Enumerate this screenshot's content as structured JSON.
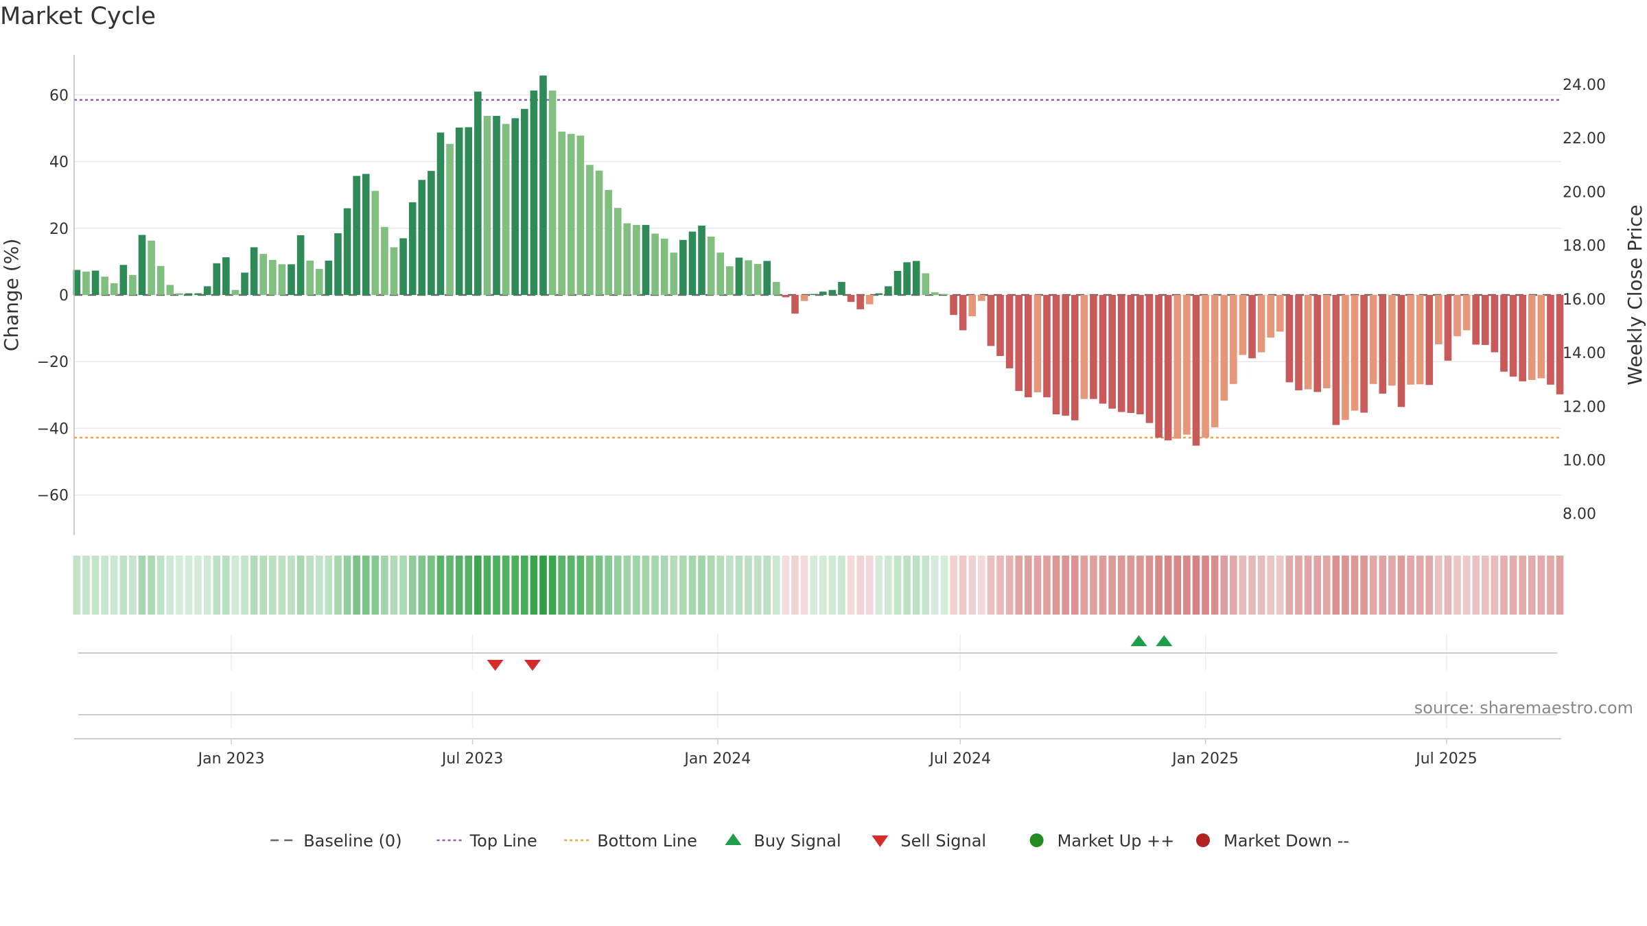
{
  "chart_data": {
    "type": "bar",
    "title": "Market Cycle",
    "ylabel": "Change (%)",
    "y2label": "Weekly Close Price",
    "ylim": [
      -72,
      72
    ],
    "y2lim": [
      7.2,
      25.1
    ],
    "yticks": [
      60,
      40,
      20,
      0,
      -20,
      -40,
      -60
    ],
    "ytick_labels": [
      "60",
      "40",
      "20",
      "0",
      "−20",
      "−40",
      "−60"
    ],
    "y2ticks": [
      24,
      22,
      20,
      18,
      16,
      14,
      12,
      10,
      8
    ],
    "y2tick_labels": [
      "24.00",
      "22.00",
      "20.00",
      "18.00",
      "16.00",
      "14.00",
      "12.00",
      "10.00",
      "8.00"
    ],
    "grid": true,
    "x_start": "2022-09-05",
    "x_end": "2025-09-25",
    "xticks": [
      "2023-01-01",
      "2023-07-01",
      "2024-01-01",
      "2024-07-01",
      "2025-01-01",
      "2025-07-01"
    ],
    "xtick_labels": [
      "Jan 2023",
      "Jul 2023",
      "Jan 2024",
      "Jul 2024",
      "Jan 2025",
      "Jul 2025"
    ],
    "first_bar_date": "2022-09-07",
    "bar_interval_days": 7,
    "series": [
      {
        "name": "Change (%)",
        "values": [
          7.5,
          7,
          7.3,
          5.5,
          3.5,
          9,
          6,
          18,
          16.3,
          8.7,
          3,
          0.5,
          0.5,
          0.5,
          2.6,
          9.5,
          11.3,
          1.5,
          6.7,
          14.3,
          12.3,
          10.5,
          9.2,
          9.2,
          17.9,
          10.3,
          7.8,
          10.3,
          18.5,
          26,
          35.7,
          36.3,
          31.2,
          20.4,
          14.3,
          17,
          27.8,
          34.5,
          37.2,
          48.7,
          45.3,
          50.2,
          50.3,
          61,
          53.7,
          53.7,
          51.3,
          53,
          55.8,
          61.3,
          65.8,
          61.3,
          49,
          48.3,
          47.8,
          39,
          37.3,
          31.5,
          26.1,
          21.5,
          21,
          21,
          18.4,
          16.9,
          12.7,
          16.5,
          19,
          20.8,
          17.5,
          12.7,
          8.6,
          11.2,
          10.4,
          9.3,
          10.2,
          3.9,
          -0.7,
          -5.6,
          -1.8,
          0.3,
          1,
          1.5,
          3.9,
          -2.1,
          -4.3,
          -2.8,
          0.5,
          2.6,
          7.2,
          9.8,
          10.2,
          6.5,
          0.8,
          0.3,
          -6,
          -10.6,
          -6.4,
          -1.8,
          -15.3,
          -18.3,
          -22,
          -28.8,
          -30.7,
          -29.2,
          -30.7,
          -35.8,
          -36.2,
          -37.6,
          -31.2,
          -31.2,
          -32.6,
          -34.1,
          -35.1,
          -35.4,
          -35.8,
          -38.4,
          -42.8,
          -43.6,
          -43.1,
          -41.9,
          -45.2,
          -42.8,
          -39.7,
          -31.7,
          -26.7,
          -18,
          -19,
          -17.2,
          -12.8,
          -11,
          -26.2,
          -28.6,
          -28.3,
          -29.1,
          -28,
          -39,
          -37.5,
          -34.7,
          -35.3,
          -26.7,
          -29.6,
          -27.2,
          -33.6,
          -26.9,
          -26.8,
          -27,
          -14.8,
          -19.7,
          -12.4,
          -10.6,
          -14.9,
          -15,
          -17.2,
          -23,
          -24.5,
          -25.9,
          -25.5,
          -25,
          -26.9,
          -29.8
        ]
      }
    ],
    "reference_lines": [
      {
        "name": "Baseline (0)",
        "value": 0,
        "color": "#666666",
        "style": "dashed"
      },
      {
        "name": "Top Line",
        "value": 58.5,
        "color": "#9b59b6",
        "style": "dotted"
      },
      {
        "name": "Bottom Line",
        "value": -42.8,
        "color": "#f0a04b",
        "style": "dotted"
      }
    ],
    "signals": {
      "buy": [
        {
          "date": "2024-11-12"
        },
        {
          "date": "2024-12-01"
        }
      ],
      "sell": [
        {
          "date": "2023-07-18"
        },
        {
          "date": "2023-08-15"
        }
      ]
    },
    "colors": {
      "up_dark": "#2e8b57",
      "up_light": "#80bf80",
      "down_dark": "#c85a5a",
      "down_light": "#e6977a",
      "buy": "#1e9e4a",
      "sell": "#d62b2b",
      "market_up": "#228b22",
      "market_down": "#b22222",
      "top_line": "#9b59b6",
      "bottom_line": "#f0a04b",
      "baseline": "#666666"
    },
    "legend": {
      "placement": "bottom-center",
      "entries": [
        {
          "label": "Baseline (0)",
          "symbol": "dash",
          "color": "#666666"
        },
        {
          "label": "Top Line",
          "symbol": "dotted",
          "color": "#9b59b6"
        },
        {
          "label": "Bottom Line",
          "symbol": "dotted",
          "color": "#f0a04b"
        },
        {
          "label": "Buy Signal",
          "symbol": "triangle-up",
          "color": "#1e9e4a"
        },
        {
          "label": "Sell Signal",
          "symbol": "triangle-down",
          "color": "#d62b2b"
        },
        {
          "label": "Market Up ++",
          "symbol": "circle",
          "color": "#228b22"
        },
        {
          "label": "Market Down --",
          "symbol": "circle",
          "color": "#b22222"
        }
      ]
    },
    "source": "source: sharemaestro.com"
  }
}
